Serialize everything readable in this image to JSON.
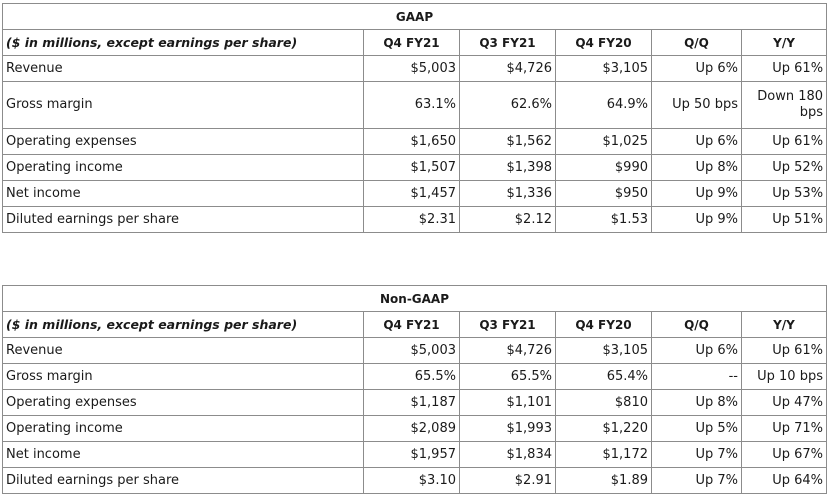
{
  "gaap": {
    "title": "GAAP",
    "header": {
      "description": "($ in millions, except earnings per share)",
      "columns": [
        "Q4 FY21",
        "Q3 FY21",
        "Q4 FY20",
        "Q/Q",
        "Y/Y"
      ]
    },
    "rows": [
      {
        "metric": "Revenue",
        "values": [
          "$5,003",
          "$4,726",
          "$3,105",
          "Up 6%",
          "Up 61%"
        ]
      },
      {
        "metric": "Gross margin",
        "values": [
          "63.1%",
          "62.6%",
          "64.9%",
          "Up 50 bps",
          "Down 180 bps"
        ]
      },
      {
        "metric": "Operating expenses",
        "values": [
          "$1,650",
          "$1,562",
          "$1,025",
          "Up 6%",
          "Up 61%"
        ]
      },
      {
        "metric": "Operating income",
        "values": [
          "$1,507",
          "$1,398",
          "$990",
          "Up 8%",
          "Up 52%"
        ]
      },
      {
        "metric": "Net income",
        "values": [
          "$1,457",
          "$1,336",
          "$950",
          "Up 9%",
          "Up 53%"
        ]
      },
      {
        "metric": "Diluted earnings per share",
        "values": [
          "$2.31",
          "$2.12",
          "$1.53",
          "Up 9%",
          "Up 51%"
        ]
      }
    ]
  },
  "non_gaap": {
    "title": "Non-GAAP",
    "header": {
      "description": "($ in millions, except earnings per share)",
      "columns": [
        "Q4 FY21",
        "Q3 FY21",
        "Q4 FY20",
        "Q/Q",
        "Y/Y"
      ]
    },
    "rows": [
      {
        "metric": "Revenue",
        "values": [
          "$5,003",
          "$4,726",
          "$3,105",
          "Up 6%",
          "Up 61%"
        ]
      },
      {
        "metric": "Gross margin",
        "values": [
          "65.5%",
          "65.5%",
          "65.4%",
          "--",
          "Up 10 bps"
        ]
      },
      {
        "metric": "Operating expenses",
        "values": [
          "$1,187",
          "$1,101",
          "$810",
          "Up 8%",
          "Up 47%"
        ]
      },
      {
        "metric": "Operating income",
        "values": [
          "$2,089",
          "$1,993",
          "$1,220",
          "Up 5%",
          "Up 71%"
        ]
      },
      {
        "metric": "Net income",
        "values": [
          "$1,957",
          "$1,834",
          "$1,172",
          "Up 7%",
          "Up 67%"
        ]
      },
      {
        "metric": "Diluted earnings per share",
        "values": [
          "$3.10",
          "$2.91",
          "$1.89",
          "Up 7%",
          "Up 64%"
        ]
      }
    ]
  }
}
